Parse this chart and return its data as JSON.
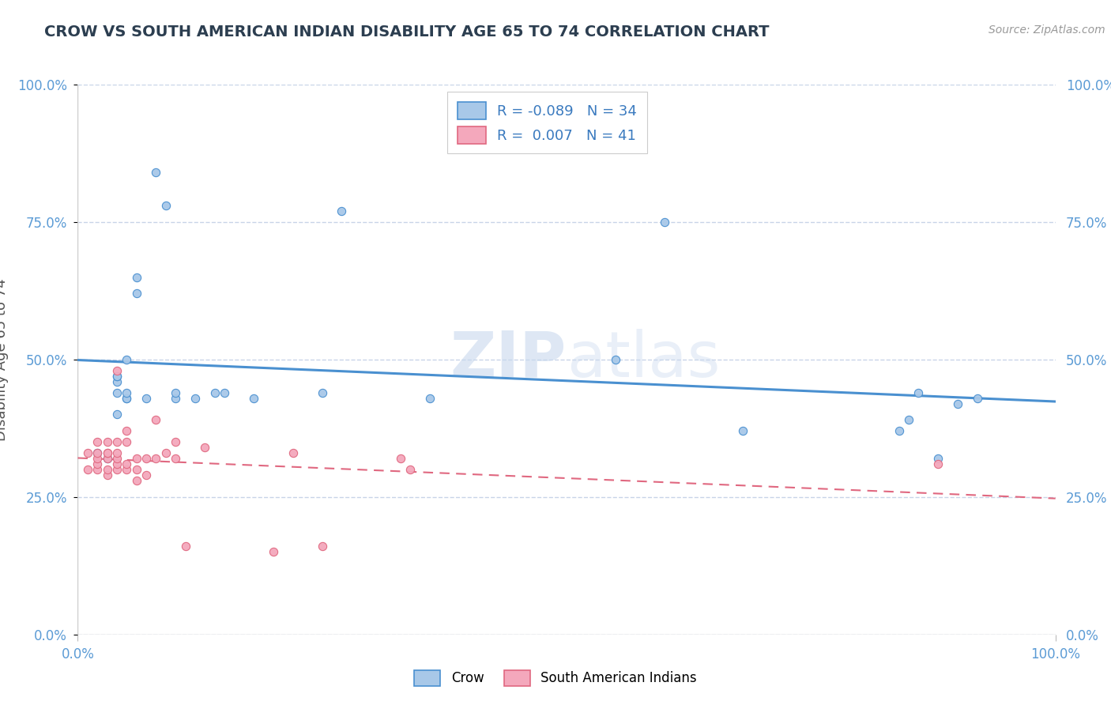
{
  "title": "CROW VS SOUTH AMERICAN INDIAN DISABILITY AGE 65 TO 74 CORRELATION CHART",
  "source": "Source: ZipAtlas.com",
  "ylabel": "Disability Age 65 to 74",
  "xlim": [
    0.0,
    1.0
  ],
  "ylim": [
    0.0,
    1.0
  ],
  "crow_R": -0.089,
  "crow_N": 34,
  "sai_R": 0.007,
  "sai_N": 41,
  "crow_color": "#a8c8e8",
  "sai_color": "#f4a8bc",
  "crow_line_color": "#4a90d0",
  "sai_line_color": "#e06880",
  "background_color": "#ffffff",
  "grid_color": "#c8d4e8",
  "crow_x": [
    0.02,
    0.04,
    0.05,
    0.05,
    0.06,
    0.06,
    0.07,
    0.08,
    0.09,
    0.1,
    0.1,
    0.12,
    0.14,
    0.15,
    0.18,
    0.25,
    0.27,
    0.36,
    0.55,
    0.6,
    0.68,
    0.84,
    0.85,
    0.86,
    0.88,
    0.9,
    0.92,
    0.03,
    0.04,
    0.04,
    0.04,
    0.04,
    0.05,
    0.05
  ],
  "crow_y": [
    0.33,
    0.44,
    0.5,
    0.43,
    0.62,
    0.65,
    0.43,
    0.84,
    0.78,
    0.43,
    0.44,
    0.43,
    0.44,
    0.44,
    0.43,
    0.44,
    0.77,
    0.43,
    0.5,
    0.75,
    0.37,
    0.37,
    0.39,
    0.44,
    0.32,
    0.42,
    0.43,
    0.32,
    0.46,
    0.47,
    0.47,
    0.4,
    0.43,
    0.44
  ],
  "sai_x": [
    0.01,
    0.01,
    0.02,
    0.02,
    0.02,
    0.02,
    0.02,
    0.03,
    0.03,
    0.03,
    0.03,
    0.03,
    0.03,
    0.04,
    0.04,
    0.04,
    0.04,
    0.04,
    0.04,
    0.05,
    0.05,
    0.05,
    0.05,
    0.06,
    0.06,
    0.06,
    0.07,
    0.07,
    0.08,
    0.08,
    0.09,
    0.1,
    0.1,
    0.11,
    0.13,
    0.2,
    0.22,
    0.25,
    0.33,
    0.34,
    0.88
  ],
  "sai_y": [
    0.3,
    0.33,
    0.3,
    0.31,
    0.32,
    0.33,
    0.35,
    0.29,
    0.3,
    0.32,
    0.33,
    0.33,
    0.35,
    0.3,
    0.31,
    0.32,
    0.33,
    0.35,
    0.48,
    0.3,
    0.31,
    0.35,
    0.37,
    0.28,
    0.3,
    0.32,
    0.29,
    0.32,
    0.32,
    0.39,
    0.33,
    0.32,
    0.35,
    0.16,
    0.34,
    0.15,
    0.33,
    0.16,
    0.32,
    0.3,
    0.31
  ],
  "ytick_labels": [
    "0.0%",
    "25.0%",
    "50.0%",
    "75.0%",
    "100.0%"
  ],
  "ytick_vals": [
    0.0,
    0.25,
    0.5,
    0.75,
    1.0
  ],
  "xtick_labels": [
    "0.0%",
    "100.0%"
  ],
  "xtick_vals": [
    0.0,
    1.0
  ]
}
